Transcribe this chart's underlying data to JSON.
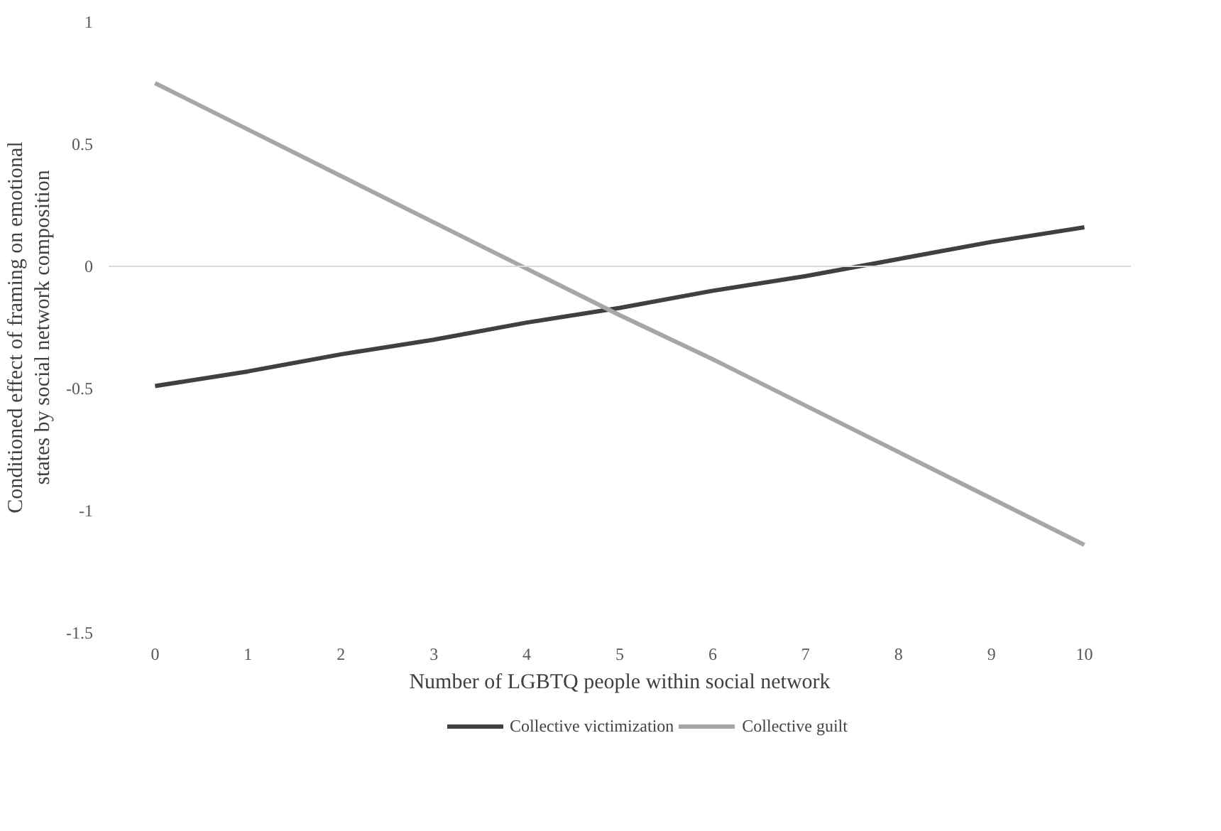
{
  "chart_data": {
    "type": "line",
    "xlabel": "Number of LGBTQ people within social network",
    "ylabel": "Conditioned effect of framing on emotional states by social network composition",
    "categories": [
      "0",
      "1",
      "2",
      "3",
      "4",
      "5",
      "6",
      "7",
      "8",
      "9",
      "10"
    ],
    "series": [
      {
        "name": "Collective victimization",
        "color": "#404040",
        "values": [
          -0.49,
          -0.43,
          -0.36,
          -0.3,
          -0.23,
          -0.17,
          -0.1,
          -0.04,
          0.03,
          0.1,
          0.16
        ]
      },
      {
        "name": "Collective guilt",
        "color": "#a6a6a6",
        "values": [
          0.75,
          0.56,
          0.37,
          0.18,
          -0.01,
          -0.2,
          -0.38,
          -0.57,
          -0.76,
          -0.95,
          -1.14
        ]
      }
    ],
    "ylim": [
      -1.5,
      1
    ],
    "yticks": [
      -1.5,
      -1,
      -0.5,
      0,
      0.5,
      1
    ],
    "ref_lines": [
      {
        "axis": "y",
        "value": 0,
        "color": "#d9d9d9"
      }
    ],
    "grid": false,
    "legend": "bottom",
    "marker": "none",
    "line_style": "solid"
  }
}
